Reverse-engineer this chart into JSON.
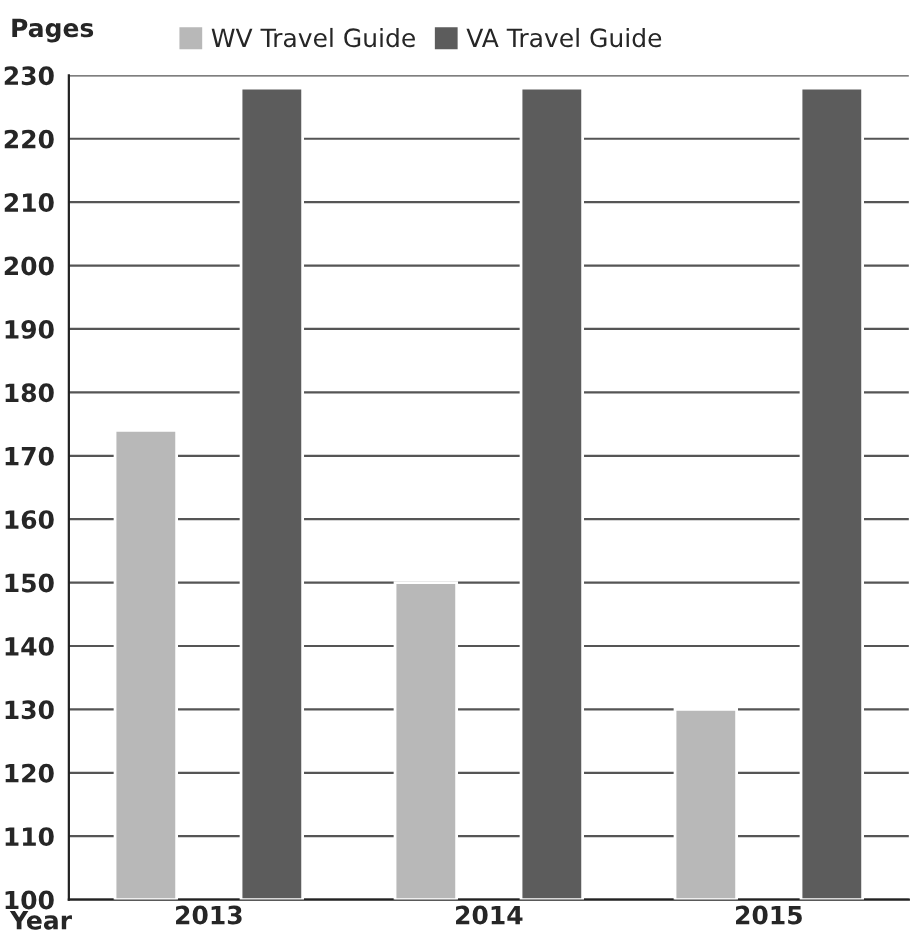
{
  "chart_data": {
    "type": "bar",
    "xlabel": "Year",
    "ylabel": "Pages",
    "categories": [
      "2013",
      "2014",
      "2015"
    ],
    "series": [
      {
        "name": "WV Travel Guide",
        "color": "#b8b8b8",
        "values": [
          174,
          150,
          130
        ]
      },
      {
        "name": "VA Travel Guide",
        "color": "#5c5c5c",
        "values": [
          228,
          228,
          228
        ]
      }
    ],
    "ylim": [
      100,
      230
    ],
    "yticks": [
      100,
      110,
      120,
      130,
      140,
      150,
      160,
      170,
      180,
      190,
      200,
      210,
      220,
      230
    ],
    "grid": "y",
    "legend": "top"
  }
}
